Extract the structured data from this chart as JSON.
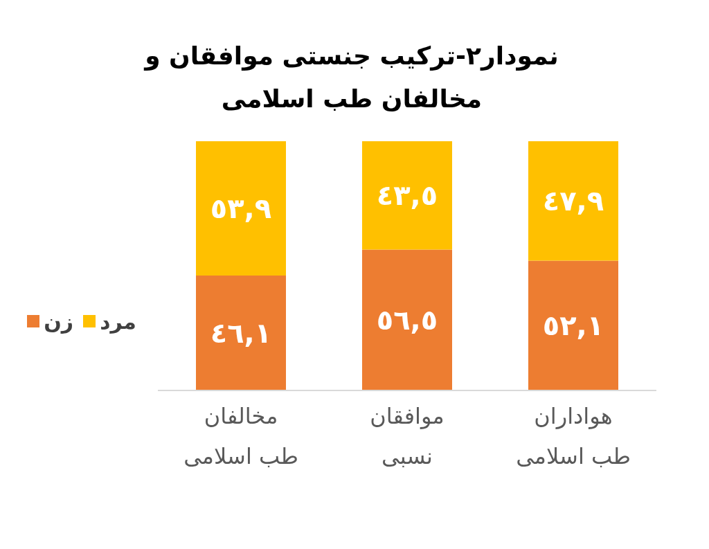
{
  "chart_data": {
    "type": "bar",
    "stacked": true,
    "title": "نمودار۲-ترکیب جنستی موافقان و مخالفان طب اسلامی",
    "categories": [
      "مخالفان طب اسلامی",
      "موافقان نسبی",
      "هواداران طب اسلامی"
    ],
    "series": [
      {
        "name": "زن",
        "color": "#ed7d31",
        "values": [
          46.1,
          56.5,
          52.1
        ],
        "value_labels": [
          "٤٦,١",
          "٥٦,٥",
          "٥٢,١"
        ]
      },
      {
        "name": "مرد",
        "color": "#ffc000",
        "values": [
          53.9,
          43.5,
          47.9
        ],
        "value_labels": [
          "٥٣,٩",
          "٤٣,٥",
          "٤٧,٩"
        ]
      }
    ],
    "legend": "left"
  }
}
